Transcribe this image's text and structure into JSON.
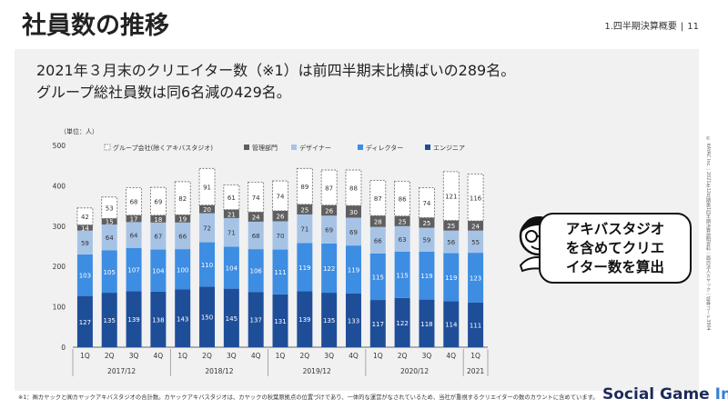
{
  "header": {
    "title": "社員数の推移",
    "section": "1.四半期決算概要",
    "separator": "|",
    "page_number": "11"
  },
  "headline": {
    "line1": "2021年３月末のクリエイター数（※1）は前四半期末比横ばいの289名。",
    "line2": "グループ総社員数は同6名減の429名。"
  },
  "callout": {
    "line1": "アキバスタジオ",
    "line2": "を含めてクリエ",
    "line3": "イター数を算出"
  },
  "footnote": "※1：㈱カヤックと㈱カヤックアキバスタジオの合計数。カヤックアキバスタジオは、カヤックの秋葉原拠点の位置づけであり、一体的な運営がなされているため、当社が重視するクリエイターの数のカウントに含めています。",
  "copyright": "© KAYAC Inc.｜2021年12月期第1四半期決算説明資料｜面白法人カヤック｜証券コード3904",
  "watermark": {
    "part1": "Social Game",
    "part2": "Info"
  },
  "colors": {
    "engineer": "#1f4e99",
    "director": "#3d8de3",
    "designer": "#a6c3e6",
    "management": "#5f5f5f",
    "group": "#ffffff"
  },
  "chart_data": {
    "type": "bar",
    "stacked": true,
    "unit_label": "（単位：人）",
    "ylim": [
      0,
      500
    ],
    "y_ticks": [
      "0",
      "100",
      "200",
      "300",
      "400",
      "500"
    ],
    "categories": [
      "1Q",
      "2Q",
      "3Q",
      "4Q",
      "1Q",
      "2Q",
      "3Q",
      "4Q",
      "1Q",
      "2Q",
      "3Q",
      "4Q",
      "1Q",
      "2Q",
      "3Q",
      "4Q",
      "1Q"
    ],
    "year_groups": [
      {
        "label": "2017/12",
        "count": 4
      },
      {
        "label": "2018/12",
        "count": 4
      },
      {
        "label": "2019/12",
        "count": 4
      },
      {
        "label": "2020/12",
        "count": 4
      },
      {
        "label": "2021",
        "count": 1
      }
    ],
    "series": [
      {
        "name": "エンジニア",
        "values": [
          127,
          135,
          139,
          138,
          143,
          150,
          145,
          137,
          131,
          139,
          135,
          133,
          117,
          122,
          118,
          114,
          111
        ]
      },
      {
        "name": "ディレクター",
        "values": [
          103,
          105,
          107,
          104,
          100,
          110,
          104,
          106,
          111,
          119,
          122,
          119,
          115,
          115,
          119,
          119,
          123
        ]
      },
      {
        "name": "デザイナー",
        "values": [
          59,
          64,
          64,
          67,
          66,
          72,
          71,
          68,
          70,
          71,
          69,
          69,
          66,
          63,
          59,
          56,
          55
        ]
      },
      {
        "name": "管理部門",
        "values": [
          14,
          15,
          17,
          18,
          19,
          20,
          21,
          24,
          26,
          25,
          26,
          30,
          28,
          25,
          25,
          25,
          24
        ]
      },
      {
        "name": "グループ会社(除くアキバスタジオ)",
        "values": [
          42,
          53,
          68,
          69,
          82,
          91,
          61,
          74,
          74,
          89,
          87,
          88,
          87,
          86,
          74,
          121,
          116
        ]
      }
    ],
    "legend": [
      "グループ会社(除くアキバスタジオ)",
      "管理部門",
      "デザイナー",
      "ディレクター",
      "エンジニア"
    ],
    "legend_position": "top",
    "grid": false
  }
}
